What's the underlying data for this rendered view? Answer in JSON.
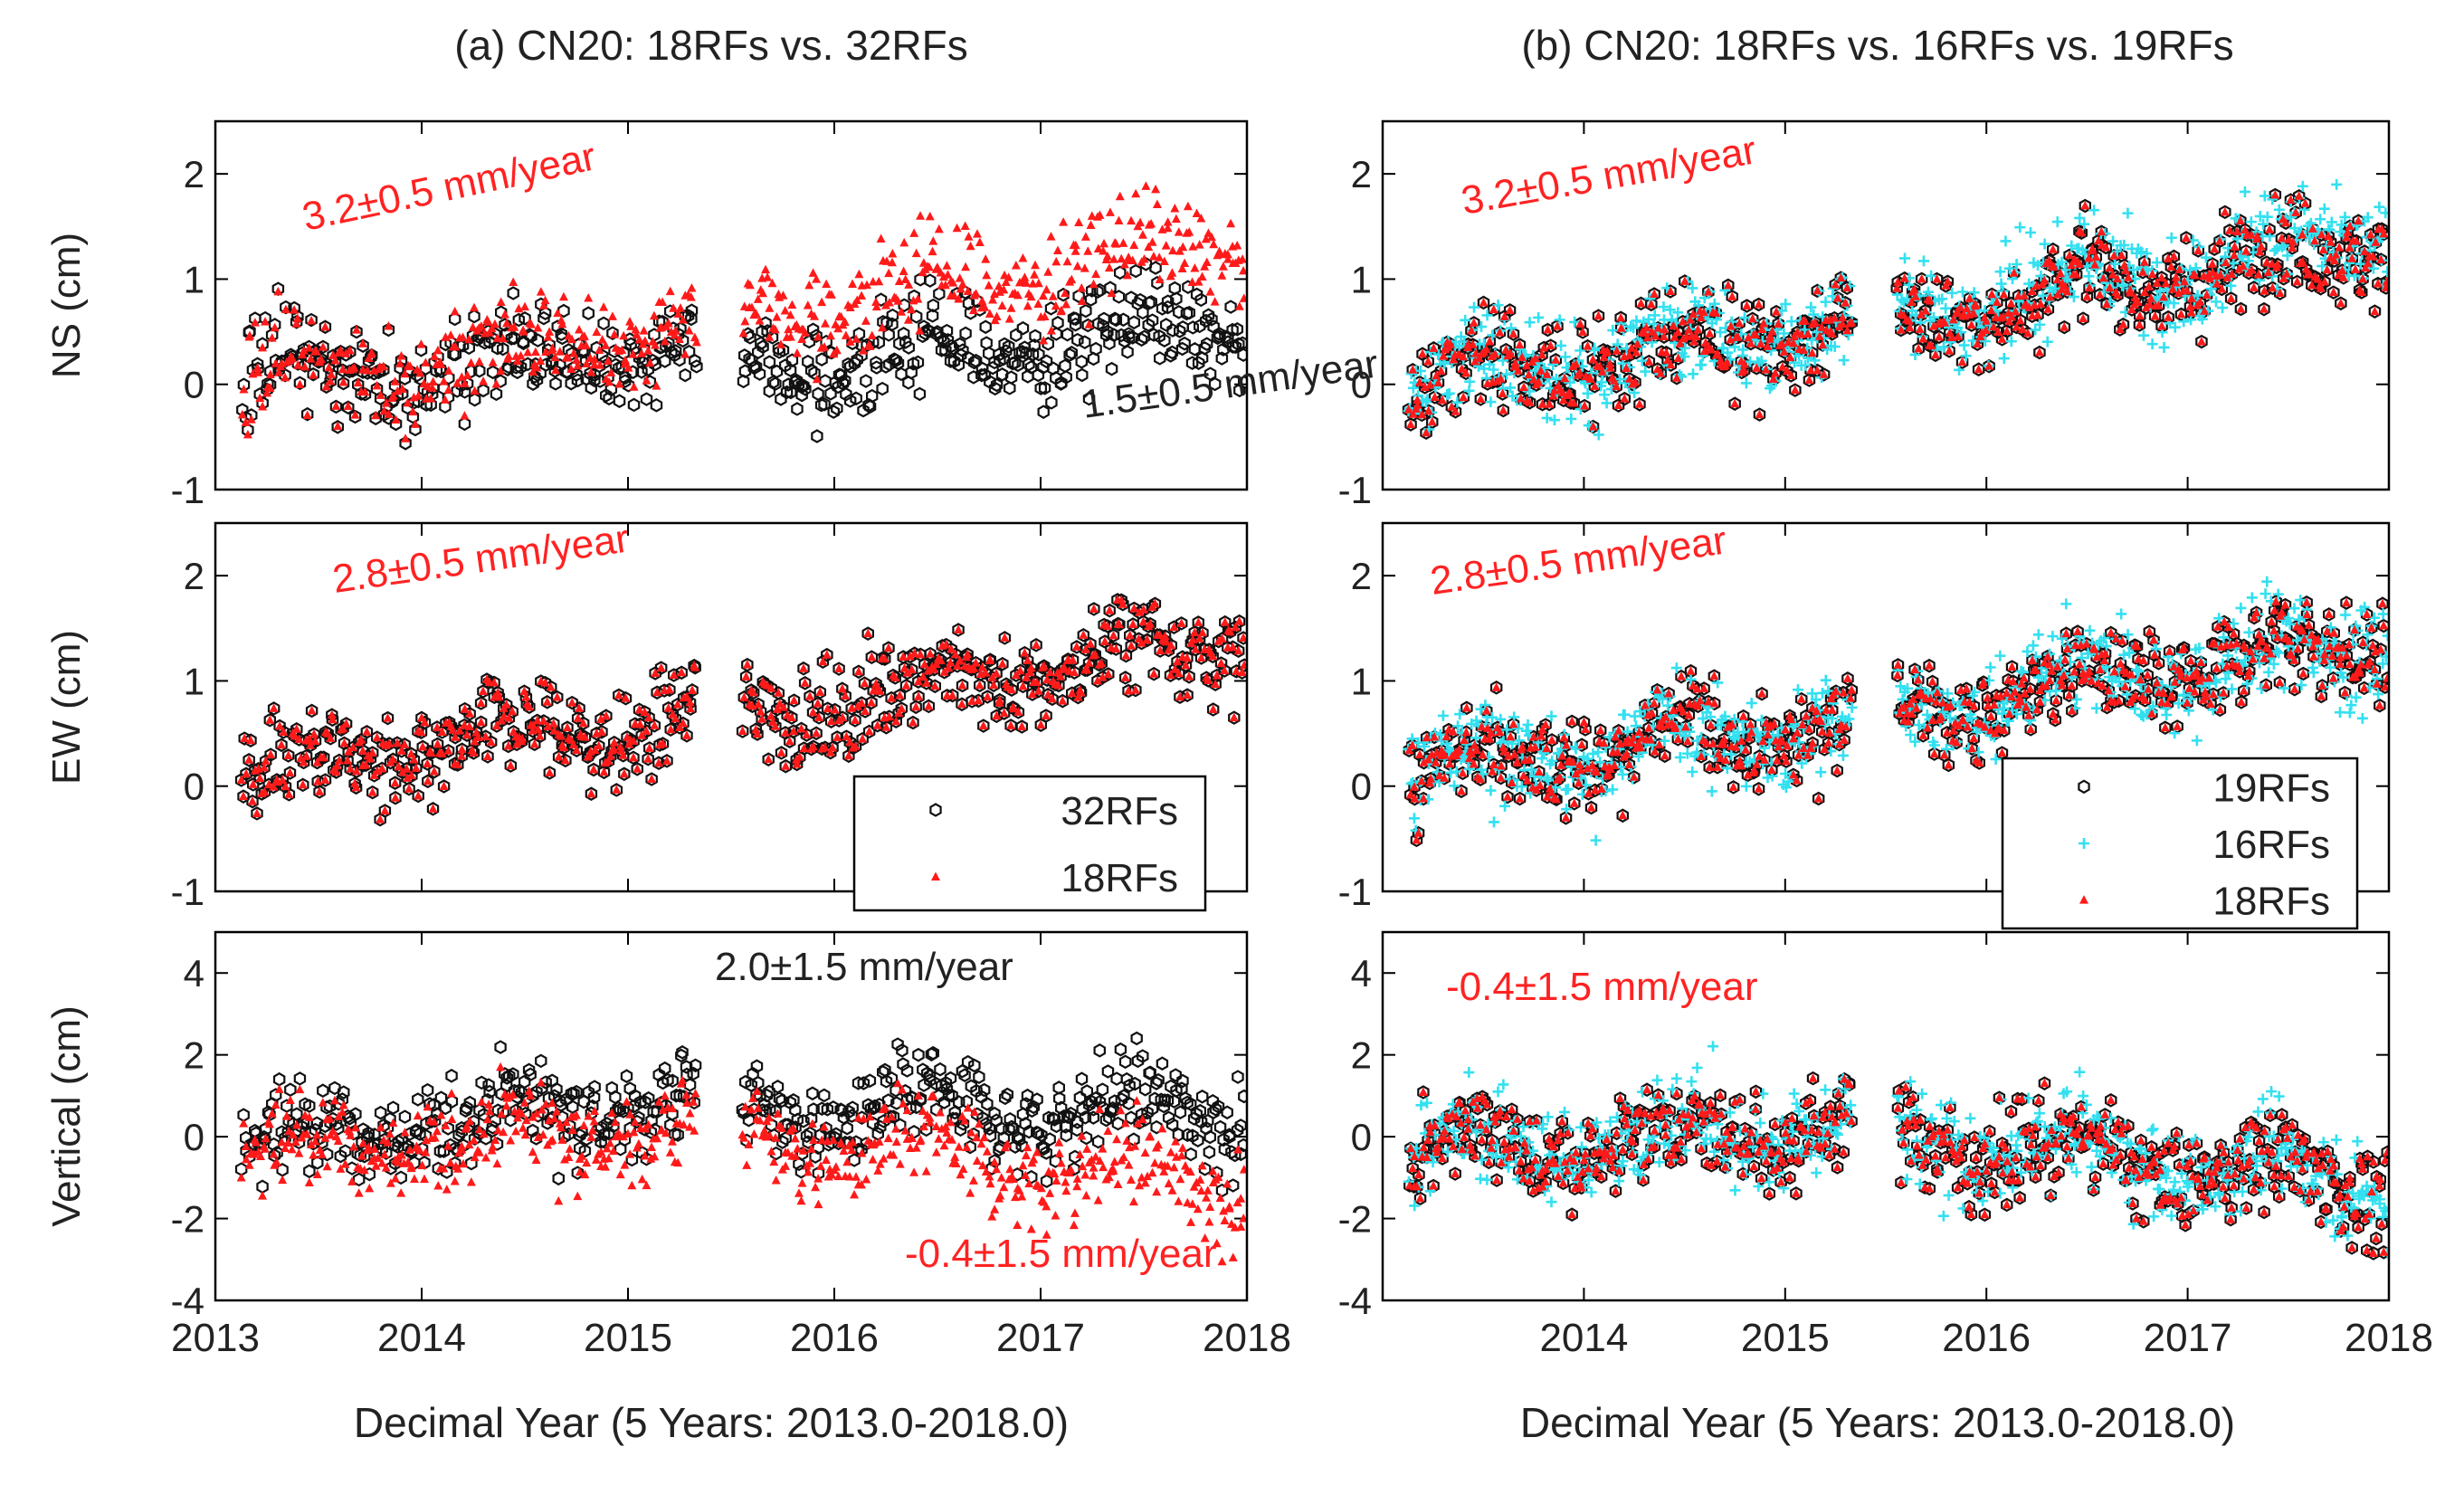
{
  "figure": {
    "xlabel": "Decimal Year (5 Years: 2013.0-2018.0)",
    "xlim": [
      2013,
      2018
    ],
    "xticks": [
      2013,
      2014,
      2015,
      2016,
      2017,
      2018
    ]
  },
  "chart_data": [
    {
      "type": "scatter",
      "title": "(a) CN20: 18RFs vs. 32RFs",
      "panels": [
        {
          "component": "NS",
          "ylabel": "NS (cm)",
          "ylim": [
            -1,
            2.5
          ],
          "yticks": [
            -1,
            0,
            1,
            2
          ],
          "annotations": [
            {
              "text": "3.2±0.5 mm/year",
              "series": "18RFs",
              "color": "#ff2222",
              "rate_mm_per_year": 3.2
            },
            {
              "text": "1.5±0.5 mm/year",
              "series": "32RFs",
              "color": "#222222",
              "rate_mm_per_year": 1.5
            }
          ],
          "series": [
            {
              "name": "32RFs",
              "marker": "open-hexagon",
              "trend": [
                [
                  2013.1,
                  0.05
                ],
                [
                  2015.3,
                  0.35
                ],
                [
                  2015.6,
                  0.15
                ],
                [
                  2018.0,
                  0.55
                ]
              ]
            },
            {
              "name": "18RFs",
              "marker": "red-triangle",
              "trend": [
                [
                  2013.1,
                  0.0
                ],
                [
                  2015.3,
                  0.55
                ],
                [
                  2015.6,
                  0.65
                ],
                [
                  2018.0,
                  1.35
                ]
              ]
            }
          ]
        },
        {
          "component": "EW",
          "ylabel": "EW (cm)",
          "ylim": [
            -1,
            2.5
          ],
          "yticks": [
            -1,
            0,
            1,
            2
          ],
          "annotations": [
            {
              "text": "2.8±0.5 mm/year",
              "series": "18RFs",
              "color": "#ff2222",
              "rate_mm_per_year": 2.8
            }
          ],
          "series": [
            {
              "name": "32RFs",
              "marker": "open-hexagon",
              "trend": [
                [
                  2013.1,
                  0.1
                ],
                [
                  2015.3,
                  0.65
                ],
                [
                  2015.6,
                  0.7
                ],
                [
                  2018.0,
                  1.4
                ]
              ]
            },
            {
              "name": "18RFs",
              "marker": "red-triangle",
              "trend": [
                [
                  2013.1,
                  0.1
                ],
                [
                  2015.3,
                  0.65
                ],
                [
                  2015.6,
                  0.7
                ],
                [
                  2018.0,
                  1.4
                ]
              ]
            }
          ],
          "legend": {
            "placement": "bottom-right",
            "entries": [
              "32RFs",
              "18RFs"
            ]
          }
        },
        {
          "component": "Vertical",
          "ylabel": "Vertical (cm)",
          "ylim": [
            -4,
            5
          ],
          "yticks": [
            -4,
            -2,
            0,
            2,
            4
          ],
          "annotations": [
            {
              "text": "2.0±1.5 mm/year",
              "series": "32RFs",
              "color": "#222222",
              "rate_mm_per_year": 2.0
            },
            {
              "text": "-0.4±1.5 mm/year",
              "series": "18RFs",
              "color": "#ff2222",
              "rate_mm_per_year": -0.4
            }
          ],
          "series": [
            {
              "name": "32RFs",
              "marker": "open-hexagon",
              "trend": [
                [
                  2013.1,
                  -0.2
                ],
                [
                  2015.3,
                  1.0
                ],
                [
                  2015.6,
                  0.6
                ],
                [
                  2018.0,
                  0.6
                ]
              ]
            },
            {
              "name": "18RFs",
              "marker": "red-triangle",
              "trend": [
                [
                  2013.1,
                  -0.4
                ],
                [
                  2015.3,
                  0.3
                ],
                [
                  2015.6,
                  0.0
                ],
                [
                  2018.0,
                  -1.2
                ]
              ]
            }
          ]
        }
      ]
    },
    {
      "type": "scatter",
      "title": "(b) CN20: 18RFs vs. 16RFs vs. 19RFs",
      "panels": [
        {
          "component": "NS",
          "ylabel": "",
          "ylim": [
            -1,
            2.5
          ],
          "yticks": [
            -1,
            0,
            1,
            2
          ],
          "annotations": [
            {
              "text": "3.2±0.5 mm/year",
              "series": "18RFs",
              "color": "#ff2222",
              "rate_mm_per_year": 3.2
            }
          ],
          "series": [
            {
              "name": "19RFs",
              "marker": "open-hexagon",
              "trend": [
                [
                  2013.1,
                  0.0
                ],
                [
                  2015.3,
                  0.55
                ],
                [
                  2015.6,
                  0.65
                ],
                [
                  2018.0,
                  1.35
                ]
              ]
            },
            {
              "name": "16RFs",
              "marker": "cyan-plus",
              "trend": [
                [
                  2013.1,
                  0.0
                ],
                [
                  2015.3,
                  0.6
                ],
                [
                  2015.6,
                  0.7
                ],
                [
                  2018.0,
                  1.45
                ]
              ]
            },
            {
              "name": "18RFs",
              "marker": "red-triangle",
              "trend": [
                [
                  2013.1,
                  0.0
                ],
                [
                  2015.3,
                  0.55
                ],
                [
                  2015.6,
                  0.65
                ],
                [
                  2018.0,
                  1.35
                ]
              ]
            }
          ]
        },
        {
          "component": "EW",
          "ylabel": "",
          "ylim": [
            -1,
            2.5
          ],
          "yticks": [
            -1,
            0,
            1,
            2
          ],
          "annotations": [
            {
              "text": "2.8±0.5 mm/year",
              "series": "18RFs",
              "color": "#ff2222",
              "rate_mm_per_year": 2.8
            }
          ],
          "series": [
            {
              "name": "19RFs",
              "marker": "open-hexagon",
              "trend": [
                [
                  2013.1,
                  0.1
                ],
                [
                  2015.3,
                  0.65
                ],
                [
                  2015.6,
                  0.7
                ],
                [
                  2018.0,
                  1.4
                ]
              ]
            },
            {
              "name": "16RFs",
              "marker": "cyan-plus",
              "trend": [
                [
                  2013.1,
                  0.1
                ],
                [
                  2015.3,
                  0.65
                ],
                [
                  2015.6,
                  0.7
                ],
                [
                  2018.0,
                  1.4
                ]
              ]
            },
            {
              "name": "18RFs",
              "marker": "red-triangle",
              "trend": [
                [
                  2013.1,
                  0.1
                ],
                [
                  2015.3,
                  0.65
                ],
                [
                  2015.6,
                  0.7
                ],
                [
                  2018.0,
                  1.4
                ]
              ]
            }
          ],
          "legend": {
            "placement": "bottom-right",
            "entries": [
              "19RFs",
              "16RFs",
              "18RFs"
            ]
          }
        },
        {
          "component": "Vertical",
          "ylabel": "",
          "ylim": [
            -4,
            5
          ],
          "yticks": [
            -4,
            -2,
            0,
            2,
            4
          ],
          "annotations": [
            {
              "text": "-0.4±1.5 mm/year",
              "series": "18RFs",
              "color": "#ff2222",
              "rate_mm_per_year": -0.4
            }
          ],
          "series": [
            {
              "name": "19RFs",
              "marker": "open-hexagon",
              "trend": [
                [
                  2013.1,
                  -0.4
                ],
                [
                  2015.3,
                  0.3
                ],
                [
                  2015.6,
                  0.0
                ],
                [
                  2018.0,
                  -1.2
                ]
              ]
            },
            {
              "name": "16RFs",
              "marker": "cyan-plus",
              "trend": [
                [
                  2013.1,
                  -0.4
                ],
                [
                  2015.3,
                  0.3
                ],
                [
                  2015.6,
                  0.0
                ],
                [
                  2018.0,
                  -1.2
                ]
              ]
            },
            {
              "name": "18RFs",
              "marker": "red-triangle",
              "trend": [
                [
                  2013.1,
                  -0.4
                ],
                [
                  2015.3,
                  0.3
                ],
                [
                  2015.6,
                  0.0
                ],
                [
                  2018.0,
                  -1.2
                ]
              ]
            }
          ]
        }
      ]
    }
  ],
  "style": {
    "axis_color": "#000000",
    "text_color": "#222222",
    "red": "#ff1a1a",
    "cyan": "#33e0f0",
    "black_marker": "#111111"
  },
  "data_gap": [
    2015.33,
    2015.55
  ]
}
